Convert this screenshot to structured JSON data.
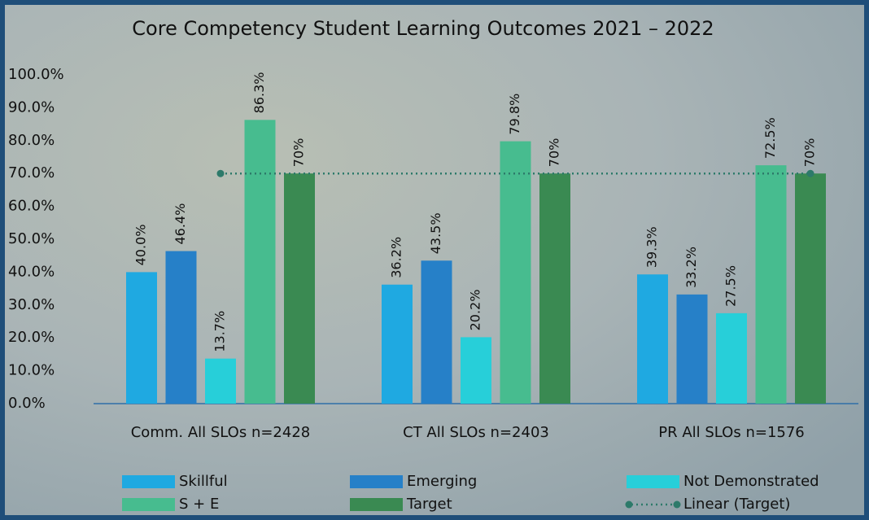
{
  "chart_data": {
    "type": "bar",
    "title": "Core Competency Student Learning Outcomes 2021 – 2022",
    "categories": [
      "Comm. All SLOs n=2428",
      "CT All SLOs n=2403",
      "PR All SLOs n=1576"
    ],
    "series": [
      {
        "name": "Skillful",
        "color": "#1fa9e1",
        "values": [
          40.0,
          36.2,
          39.3
        ],
        "value_labels": [
          "40.0%",
          "36.2%",
          "39.3%"
        ]
      },
      {
        "name": "Emerging",
        "color": "#2680c8",
        "values": [
          46.4,
          43.5,
          33.2
        ],
        "value_labels": [
          "46.4%",
          "43.5%",
          "33.2%"
        ]
      },
      {
        "name": "Not Demonstrated",
        "color": "#27cfd9",
        "values": [
          13.7,
          20.2,
          27.5
        ],
        "value_labels": [
          "13.7%",
          "20.2%",
          "27.5%"
        ]
      },
      {
        "name": "S + E",
        "color": "#47bc8f",
        "values": [
          86.3,
          79.8,
          72.5
        ],
        "value_labels": [
          "86.3%",
          "79.8%",
          "72.5%"
        ]
      },
      {
        "name": "Target",
        "color": "#3a8a52",
        "values": [
          70,
          70,
          70
        ],
        "value_labels": [
          "70%",
          "70%",
          "70%"
        ]
      },
      {
        "name": "Linear (Target)",
        "color": "#2d7a6a",
        "type": "trendline",
        "values": [
          70,
          70,
          70
        ]
      }
    ],
    "ylim": [
      0,
      100
    ],
    "yticks": [
      {
        "value": 0,
        "label": "0.0%"
      },
      {
        "value": 10,
        "label": "10.0%"
      },
      {
        "value": 20,
        "label": "20.0%"
      },
      {
        "value": 30,
        "label": "30.0%"
      },
      {
        "value": 40,
        "label": "40.0%"
      },
      {
        "value": 50,
        "label": "50.0%"
      },
      {
        "value": 60,
        "label": "60.0%"
      },
      {
        "value": 70,
        "label": "70.0%"
      },
      {
        "value": 80,
        "label": "80.0%"
      },
      {
        "value": 90,
        "label": "90.0%"
      },
      {
        "value": 100,
        "label": "100.0%"
      }
    ],
    "grid": false,
    "legend_position": "bottom"
  }
}
